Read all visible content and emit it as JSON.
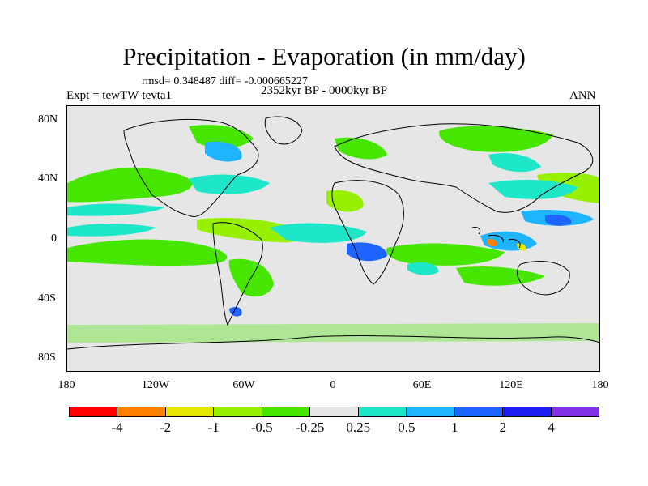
{
  "title": "Precipitation - Evaporation (in mm/day)",
  "stats": "rmsd= 0.348487 diff= -0.000665227",
  "experiment": "Expt = tewTW-tevta1",
  "period": "2352kyr BP - 0000kyr BP",
  "season": "ANN",
  "lat_labels": [
    "80N",
    "40N",
    "0",
    "40S",
    "80S"
  ],
  "lon_labels": [
    "180",
    "120W",
    "60W",
    "0",
    "60E",
    "120E",
    "180"
  ],
  "colorbar": {
    "colors": [
      "#ff0000",
      "#ff8000",
      "#e6e600",
      "#96f000",
      "#46e600",
      "#e6e6e6",
      "#1ee6c8",
      "#1eb4ff",
      "#1e64ff",
      "#1e1ef0",
      "#8232e6"
    ],
    "labels": [
      "-4",
      "-2",
      "-1",
      "-0.5",
      "-0.25",
      "0.25",
      "0.5",
      "1",
      "2",
      "4"
    ]
  }
}
